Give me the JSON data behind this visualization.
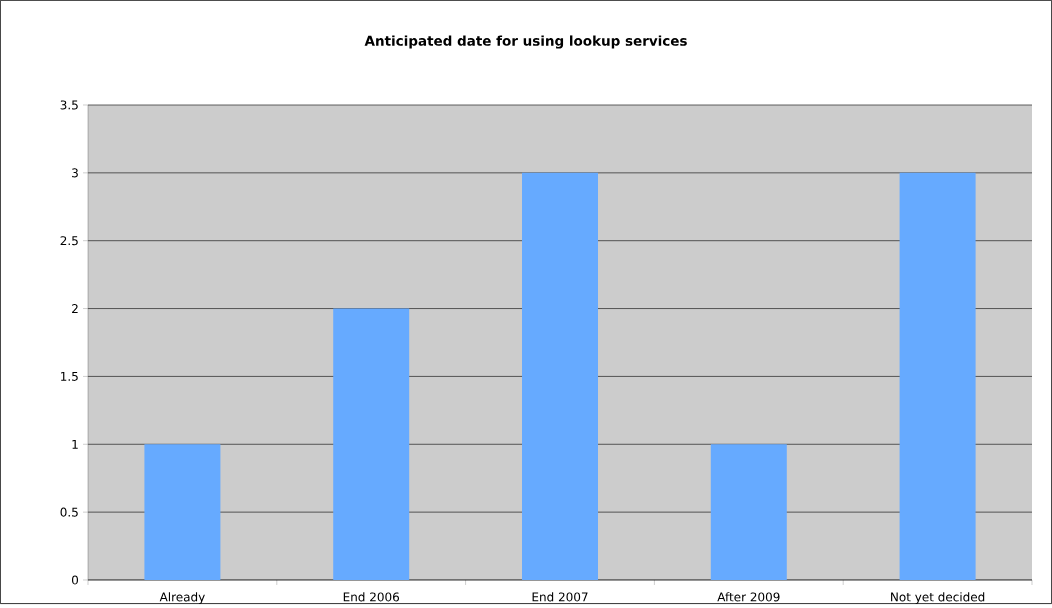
{
  "chart_data": {
    "type": "bar",
    "title": "Anticipated date for using lookup services",
    "categories": [
      "Already",
      "End 2006",
      "End 2007",
      "After 2009",
      "Not yet decided"
    ],
    "values": [
      1,
      2,
      3,
      1,
      3
    ],
    "color": "#66aaff",
    "ylim": [
      0,
      3.5
    ],
    "yticks": [
      0,
      0.5,
      1,
      1.5,
      2,
      2.5,
      3,
      3.5
    ],
    "grid": "y"
  }
}
